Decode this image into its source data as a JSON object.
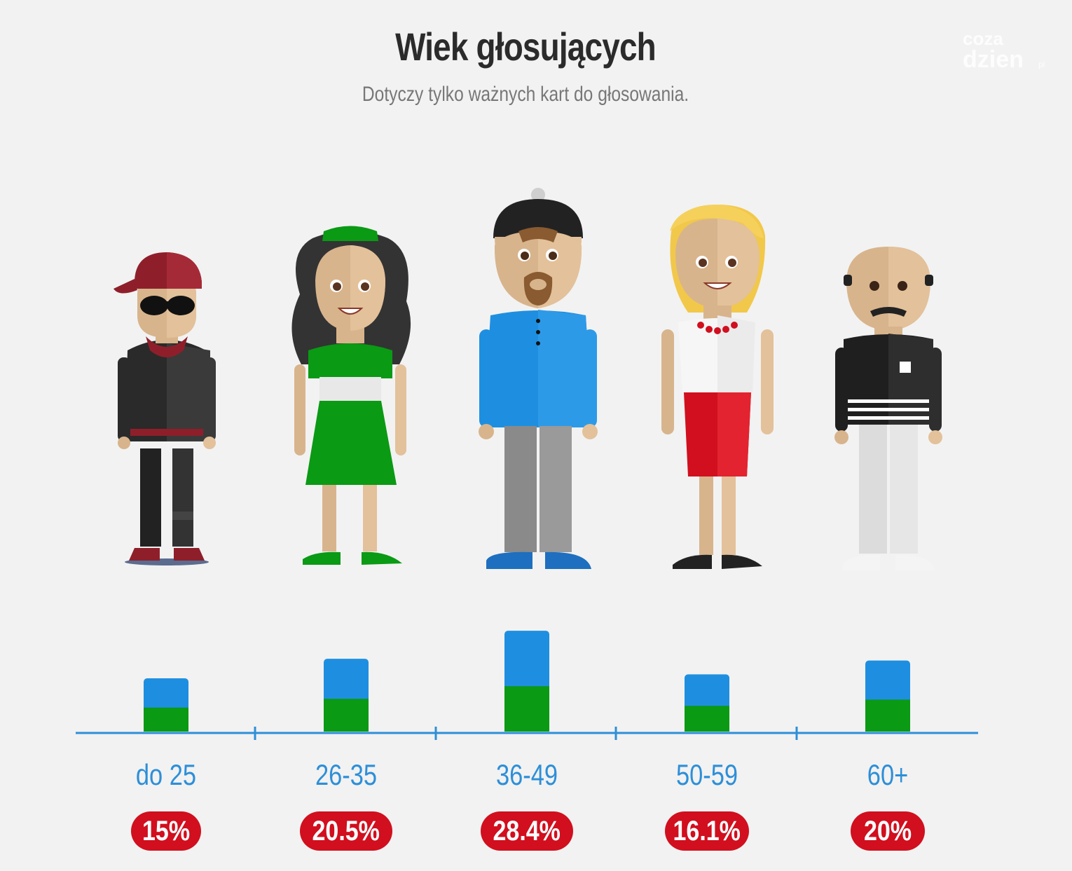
{
  "header": {
    "title": "Wiek głosujących",
    "subtitle": "Dotyczy tylko ważnych kart do głosowania."
  },
  "logo": {
    "line1": "coza",
    "line2": "dzien",
    "line3": "pl"
  },
  "chart_data": {
    "type": "bar",
    "title": "Wiek głosujących",
    "subtitle": "Dotyczy tylko ważnych kart do głosowania.",
    "categories": [
      "do 25",
      "26-35",
      "36-49",
      "50-59",
      "60+"
    ],
    "values": [
      15,
      20.5,
      28.4,
      16.1,
      20
    ],
    "value_labels": [
      "15%",
      "20.5%",
      "28.4%",
      "16.1%",
      "20%"
    ],
    "ylim": [
      0,
      30
    ],
    "grid": false,
    "legend": "none",
    "colors": {
      "bar_top": "#1e8fe0",
      "bar_bottom": "#0a9a14",
      "axis": "#2d8fd8",
      "badge": "#d10f1e"
    }
  },
  "figures": [
    {
      "name": "young-man-figure",
      "category": "do 25"
    },
    {
      "name": "woman-green-dress-figure",
      "category": "26-35"
    },
    {
      "name": "man-blue-shirt-figure",
      "category": "36-49"
    },
    {
      "name": "blonde-woman-figure",
      "category": "50-59"
    },
    {
      "name": "old-man-figure",
      "category": "60+"
    }
  ]
}
